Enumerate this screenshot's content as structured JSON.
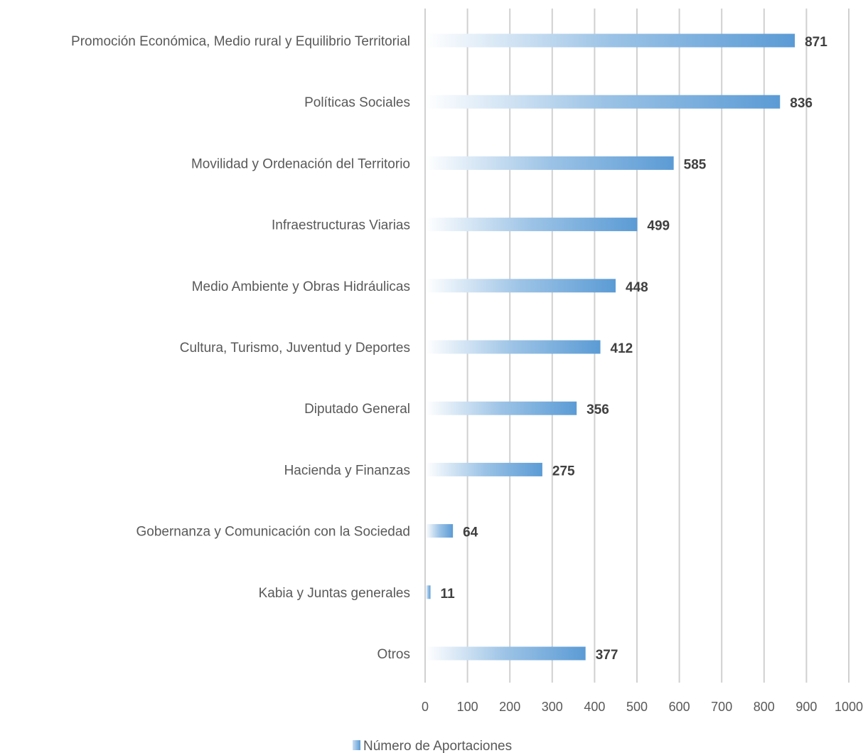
{
  "chart_data": {
    "type": "bar",
    "orientation": "horizontal",
    "categories": [
      "Promoción Económica, Medio rural y Equilibrio Territorial",
      "Políticas Sociales",
      "Movilidad y Ordenación del Territorio",
      "Infraestructuras Viarias",
      "Medio Ambiente y Obras Hidráulicas",
      "Cultura, Turismo, Juventud y Deportes",
      "Diputado General",
      "Hacienda y Finanzas",
      "Gobernanza y Comunicación con la Sociedad",
      "Kabia y Juntas generales",
      "Otros"
    ],
    "series": [
      {
        "name": "Número de Aportaciones",
        "values": [
          871,
          836,
          585,
          499,
          448,
          412,
          356,
          275,
          64,
          11,
          377
        ],
        "color": "#5b9bd5"
      }
    ],
    "xlim": [
      0,
      1000
    ],
    "xticks": [
      "0",
      "100",
      "200",
      "300",
      "400",
      "500",
      "600",
      "700",
      "800",
      "900",
      "1000"
    ],
    "grid": "vertical",
    "legend_position": "bottom",
    "title": "",
    "xlabel": "",
    "ylabel": ""
  }
}
